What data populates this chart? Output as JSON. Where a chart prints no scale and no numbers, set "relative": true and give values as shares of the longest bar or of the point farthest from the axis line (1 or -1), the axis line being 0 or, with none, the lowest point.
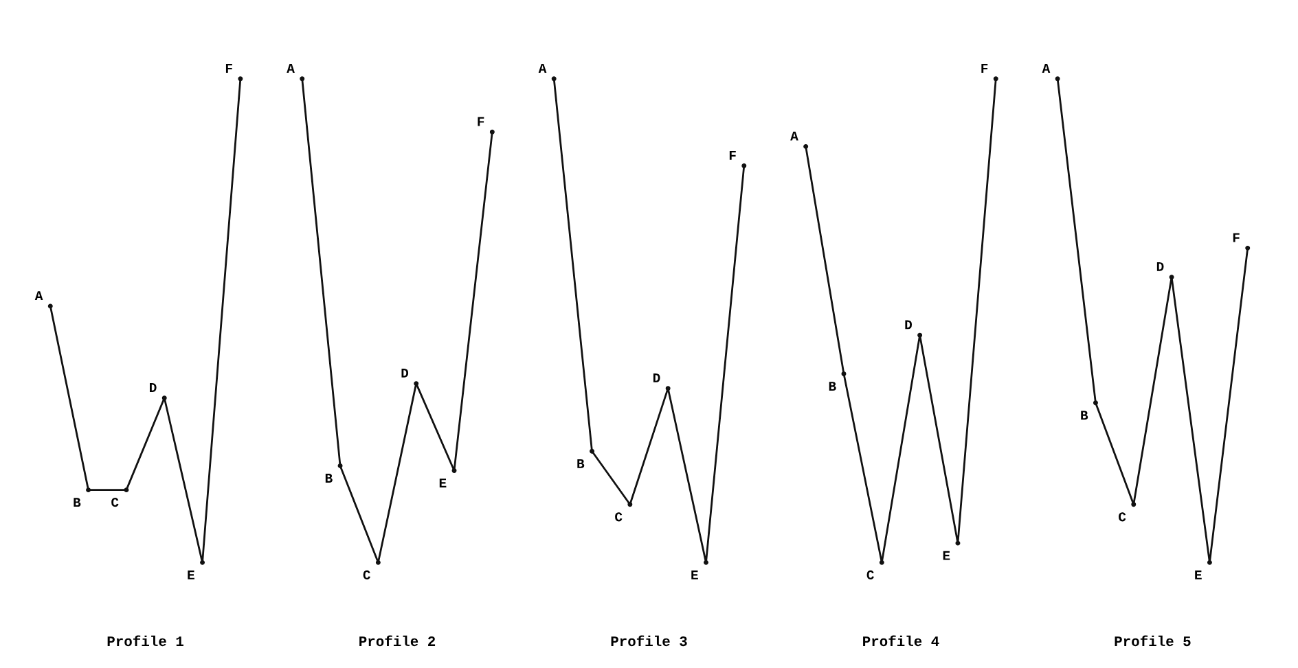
{
  "chart_data": [
    {
      "type": "line",
      "title": "Profile 1",
      "relative": true,
      "categories": [
        null,
        null,
        null,
        null,
        null,
        null
      ],
      "marker": "circle",
      "annotations": [
        "A",
        "B",
        "C",
        "D",
        "E",
        "F"
      ],
      "series": [
        {
          "color": "#111111",
          "values": [
            0.53,
            0.15,
            0.15,
            0.34,
            0,
            1
          ]
        }
      ]
    },
    {
      "type": "line",
      "title": "Profile 2",
      "relative": true,
      "categories": [
        null,
        null,
        null,
        null,
        null,
        null
      ],
      "marker": "circle",
      "annotations": [
        "A",
        "B",
        "C",
        "D",
        "E",
        "F"
      ],
      "series": [
        {
          "color": "#111111",
          "values": [
            1,
            0.2,
            0,
            0.37,
            0.19,
            0.89
          ]
        }
      ]
    },
    {
      "type": "line",
      "title": "Profile 3",
      "relative": true,
      "categories": [
        null,
        null,
        null,
        null,
        null,
        null
      ],
      "marker": "circle",
      "annotations": [
        "A",
        "B",
        "C",
        "D",
        "E",
        "F"
      ],
      "series": [
        {
          "color": "#111111",
          "values": [
            1,
            0.23,
            0.12,
            0.36,
            0,
            0.82
          ]
        }
      ]
    },
    {
      "type": "line",
      "title": "Profile 4",
      "relative": true,
      "categories": [
        null,
        null,
        null,
        null,
        null,
        null
      ],
      "marker": "circle",
      "annotations": [
        "A",
        "B",
        "C",
        "D",
        "E",
        "F"
      ],
      "series": [
        {
          "color": "#111111",
          "values": [
            0.86,
            0.39,
            0,
            0.47,
            0.04,
            1
          ]
        }
      ]
    },
    {
      "type": "line",
      "title": "Profile 5",
      "relative": true,
      "categories": [
        null,
        null,
        null,
        null,
        null,
        null
      ],
      "marker": "circle",
      "annotations": [
        "A",
        "B",
        "C",
        "D",
        "E",
        "F"
      ],
      "series": [
        {
          "color": "#111111",
          "values": [
            1,
            0.33,
            0.12,
            0.59,
            0,
            0.65
          ]
        }
      ]
    }
  ]
}
